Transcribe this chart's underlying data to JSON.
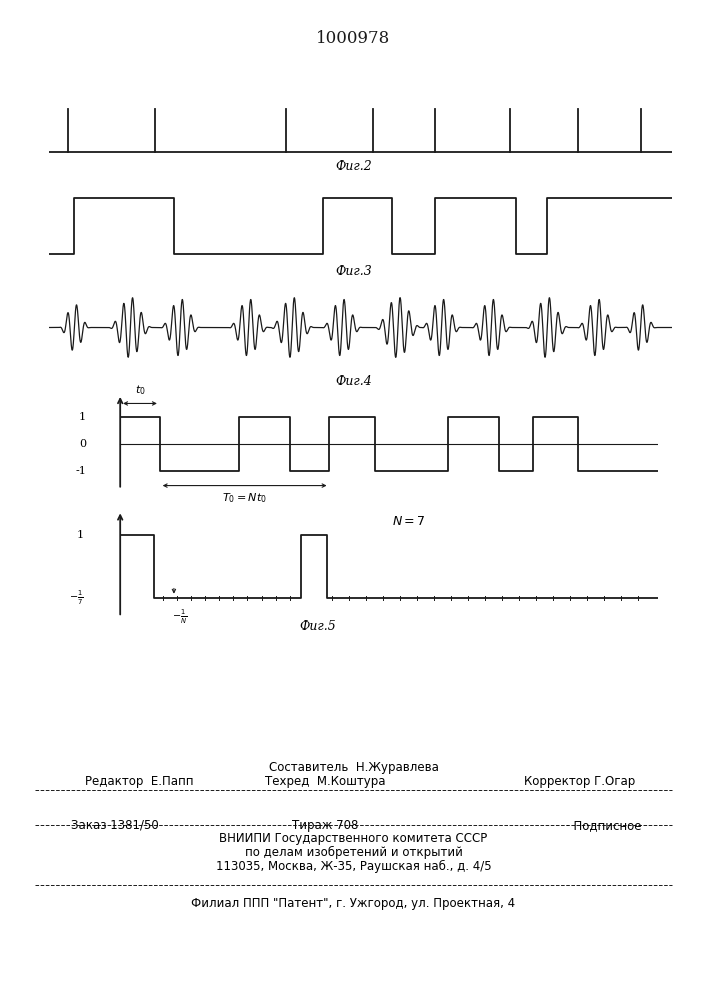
{
  "title": "1000978",
  "fig_width": 7.07,
  "fig_height": 10.0,
  "line_color": "#1a1a1a",
  "fig2_label": "Фиг.2",
  "fig3_label": "Фиг.3",
  "fig4_label": "Фиг.4",
  "fig5_label": "Фиг.5",
  "footer_composer": "Составитель  Н.Журавлева",
  "footer_editor": "Редактор  Е.Папп",
  "footer_techred": "Техред  М.Коштура",
  "footer_corrector": "Корректор Г.Огар",
  "footer_order": "Заказ 1381/50",
  "footer_copies": "Тираж 708",
  "footer_signed": "· Подписное",
  "footer_vnipi": "ВНИИПИ Государственного комитета СССР",
  "footer_dept": "по делам изобретений и открытий",
  "footer_addr": "113035, Москва, Ж-35, Раушская наб., д. 4/5",
  "footer_filial": "Филиал ППП \"Патент\", г. Ужгород, ул. Проектная, 4"
}
